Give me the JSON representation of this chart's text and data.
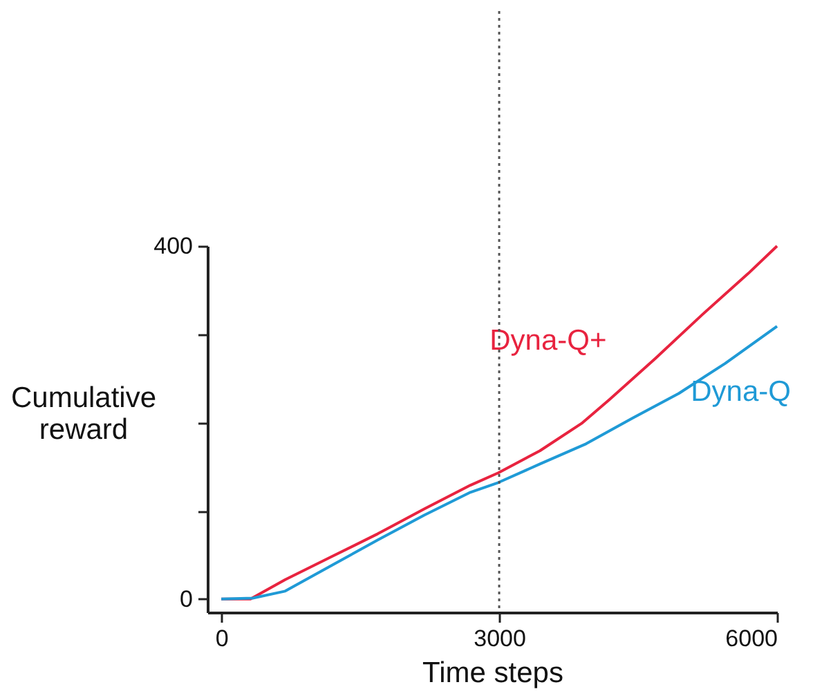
{
  "chart_data": {
    "type": "line",
    "xlabel": "Time steps",
    "ylabel": "Cumulative reward",
    "xlim": [
      -150,
      6000
    ],
    "ylim": [
      -15,
      400
    ],
    "xticks": [
      0,
      3000,
      6000
    ],
    "yticks": [
      0,
      {
        "value": 100,
        "label": null
      },
      {
        "value": 200,
        "label": null
      },
      {
        "value": 300,
        "label": null
      },
      400
    ],
    "grid": false,
    "legend": false,
    "marker": "none",
    "line_style": "solid",
    "ref_lines": [
      {
        "axis": "x",
        "value": 3000,
        "label": null,
        "color": "#555555",
        "line_style": "dotted"
      }
    ],
    "series": [
      {
        "name": "Dyna-Q+",
        "color": "#e8233f",
        "x": [
          0,
          315,
          690,
          1190,
          1690,
          2190,
          2690,
          2990,
          3440,
          3890,
          4190,
          4690,
          5190,
          5690,
          6000
        ],
        "values": [
          0,
          0,
          22,
          48,
          74,
          102,
          129,
          143,
          168,
          199,
          226,
          273,
          322,
          369,
          400
        ]
      },
      {
        "name": "Dyna-Q",
        "color": "#1f9ad6",
        "x": [
          0,
          340,
          690,
          1190,
          1690,
          2190,
          2690,
          2990,
          3440,
          3940,
          4440,
          4940,
          5440,
          6000
        ],
        "values": [
          0,
          1,
          9,
          38,
          67,
          95,
          121,
          132,
          153,
          176,
          205,
          233,
          267,
          309
        ]
      }
    ]
  }
}
